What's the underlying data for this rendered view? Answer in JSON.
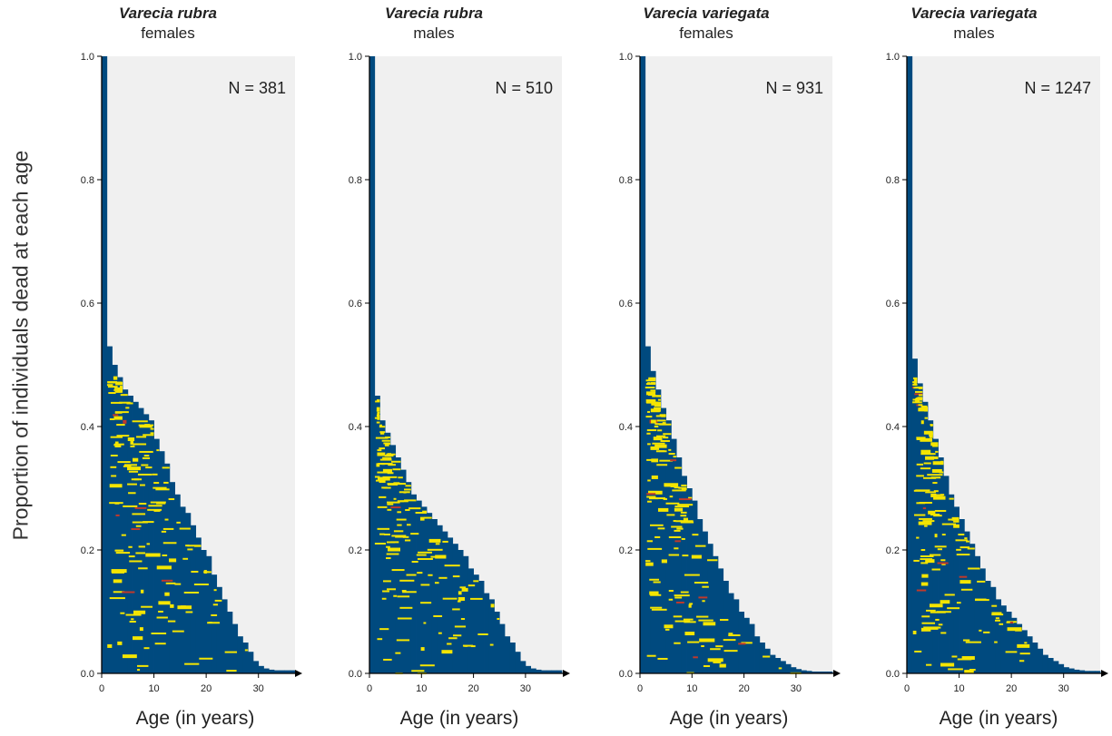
{
  "colors": {
    "background": "#f0f0f0",
    "bars": "#004a7f",
    "living": "#f5e500",
    "dead_marks": "#c0392b",
    "axis": "#000000"
  },
  "y_axis_label": "Proportion of individuals dead at each age",
  "chart_data": [
    {
      "type": "bar",
      "title_species": "Varecia rubra",
      "title_sex": "females",
      "annotation": "N = 381",
      "xlabel": "Age (in years)",
      "ylabel": "Proportion of individuals dead at each age",
      "xlim": [
        0,
        37
      ],
      "ylim": [
        0,
        1.0
      ],
      "xticks": [
        0,
        10,
        20,
        30
      ],
      "yticks": [
        0.0,
        0.2,
        0.4,
        0.6,
        0.8,
        1.0
      ],
      "grid": false,
      "x": [
        0,
        1,
        2,
        3,
        4,
        5,
        6,
        7,
        8,
        9,
        10,
        11,
        12,
        13,
        14,
        15,
        16,
        17,
        18,
        19,
        20,
        21,
        22,
        23,
        24,
        25,
        26,
        27,
        28,
        29,
        30,
        31,
        32,
        33,
        34,
        35,
        36
      ],
      "values": [
        1.0,
        0.53,
        0.5,
        0.48,
        0.46,
        0.45,
        0.44,
        0.43,
        0.42,
        0.41,
        0.38,
        0.36,
        0.34,
        0.31,
        0.29,
        0.27,
        0.26,
        0.24,
        0.22,
        0.2,
        0.19,
        0.16,
        0.14,
        0.12,
        0.1,
        0.08,
        0.06,
        0.05,
        0.035,
        0.02,
        0.012,
        0.008,
        0.006,
        0.005,
        0.005,
        0.005,
        0.005
      ]
    },
    {
      "type": "bar",
      "title_species": "Varecia rubra",
      "title_sex": "males",
      "annotation": "N = 510",
      "xlabel": "Age (in years)",
      "ylabel": "Proportion of individuals dead at each age",
      "xlim": [
        0,
        37
      ],
      "ylim": [
        0,
        1.0
      ],
      "xticks": [
        0,
        10,
        20,
        30
      ],
      "yticks": [
        0.0,
        0.2,
        0.4,
        0.6,
        0.8,
        1.0
      ],
      "grid": false,
      "x": [
        0,
        1,
        2,
        3,
        4,
        5,
        6,
        7,
        8,
        9,
        10,
        11,
        12,
        13,
        14,
        15,
        16,
        17,
        18,
        19,
        20,
        21,
        22,
        23,
        24,
        25,
        26,
        27,
        28,
        29,
        30,
        31,
        32,
        33,
        34,
        35,
        36
      ],
      "values": [
        1.0,
        0.45,
        0.41,
        0.39,
        0.37,
        0.35,
        0.33,
        0.31,
        0.29,
        0.28,
        0.27,
        0.26,
        0.25,
        0.24,
        0.23,
        0.22,
        0.21,
        0.2,
        0.19,
        0.17,
        0.16,
        0.15,
        0.13,
        0.12,
        0.1,
        0.08,
        0.06,
        0.05,
        0.035,
        0.02,
        0.012,
        0.008,
        0.006,
        0.005,
        0.005,
        0.005,
        0.005
      ]
    },
    {
      "type": "bar",
      "title_species": "Varecia variegata",
      "title_sex": "females",
      "annotation": "N = 931",
      "xlabel": "Age (in years)",
      "ylabel": "Proportion of individuals dead at each age",
      "xlim": [
        0,
        37
      ],
      "ylim": [
        0,
        1.0
      ],
      "xticks": [
        0,
        10,
        20,
        30
      ],
      "yticks": [
        0.0,
        0.2,
        0.4,
        0.6,
        0.8,
        1.0
      ],
      "grid": false,
      "x": [
        0,
        1,
        2,
        3,
        4,
        5,
        6,
        7,
        8,
        9,
        10,
        11,
        12,
        13,
        14,
        15,
        16,
        17,
        18,
        19,
        20,
        21,
        22,
        23,
        24,
        25,
        26,
        27,
        28,
        29,
        30,
        31,
        32,
        33,
        34,
        35,
        36
      ],
      "values": [
        1.0,
        0.53,
        0.49,
        0.46,
        0.43,
        0.41,
        0.38,
        0.35,
        0.32,
        0.3,
        0.28,
        0.25,
        0.23,
        0.21,
        0.19,
        0.17,
        0.15,
        0.13,
        0.12,
        0.1,
        0.09,
        0.08,
        0.06,
        0.05,
        0.04,
        0.03,
        0.025,
        0.02,
        0.015,
        0.01,
        0.007,
        0.005,
        0.004,
        0.003,
        0.003,
        0.003,
        0.003
      ]
    },
    {
      "type": "bar",
      "title_species": "Varecia variegata",
      "title_sex": "males",
      "annotation": "N = 1247",
      "xlabel": "Age (in years)",
      "ylabel": "Proportion of individuals dead at each age",
      "xlim": [
        0,
        37
      ],
      "ylim": [
        0,
        1.0
      ],
      "xticks": [
        0,
        10,
        20,
        30
      ],
      "yticks": [
        0.0,
        0.2,
        0.4,
        0.6,
        0.8,
        1.0
      ],
      "grid": false,
      "x": [
        0,
        1,
        2,
        3,
        4,
        5,
        6,
        7,
        8,
        9,
        10,
        11,
        12,
        13,
        14,
        15,
        16,
        17,
        18,
        19,
        20,
        21,
        22,
        23,
        24,
        25,
        26,
        27,
        28,
        29,
        30,
        31,
        32,
        33,
        34,
        35,
        36
      ],
      "values": [
        1.0,
        0.51,
        0.47,
        0.44,
        0.41,
        0.38,
        0.35,
        0.32,
        0.29,
        0.27,
        0.25,
        0.23,
        0.21,
        0.19,
        0.17,
        0.15,
        0.14,
        0.12,
        0.11,
        0.1,
        0.09,
        0.08,
        0.07,
        0.06,
        0.05,
        0.04,
        0.03,
        0.025,
        0.02,
        0.015,
        0.01,
        0.008,
        0.006,
        0.005,
        0.004,
        0.004,
        0.004
      ]
    }
  ]
}
